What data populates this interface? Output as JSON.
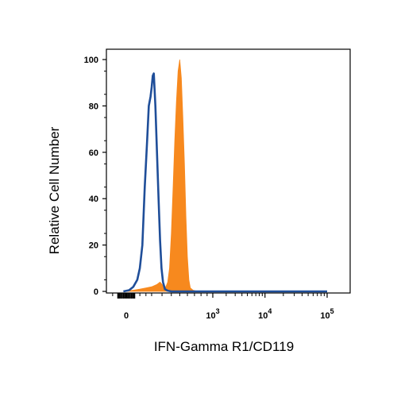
{
  "chart_data": {
    "type": "area",
    "xlabel": "IFN-Gamma R1/CD119",
    "ylabel": "Relative Cell Number",
    "ylim": [
      0,
      100
    ],
    "y_ticks": [
      0,
      20,
      40,
      60,
      80,
      100
    ],
    "x_scale": "biexponential",
    "x_ticks": [
      {
        "value": 0,
        "label": "0"
      },
      {
        "value": 1000,
        "base": "10",
        "exp": "3"
      },
      {
        "value": 10000,
        "base": "10",
        "exp": "4"
      },
      {
        "value": 100000,
        "base": "10",
        "exp": "5"
      }
    ],
    "grid": false,
    "series": [
      {
        "style": "outline",
        "color": "#1f4e99",
        "x": [
          -20,
          20,
          50,
          80,
          100,
          120,
          140,
          160,
          175,
          190,
          200,
          210,
          220,
          235,
          250,
          265,
          280,
          295,
          310,
          330,
          360,
          400,
          500,
          800,
          100000
        ],
        "y": [
          0,
          0.5,
          2,
          5,
          10,
          20,
          45,
          65,
          80,
          84,
          88,
          93,
          94,
          80,
          60,
          40,
          22,
          10,
          4,
          1,
          0.3,
          0,
          0,
          0,
          0
        ]
      },
      {
        "style": "filled",
        "color": "#f7891e",
        "x": [
          -20,
          50,
          100,
          150,
          200,
          250,
          280,
          300,
          320,
          340,
          360,
          380,
          400,
          420,
          440,
          460,
          480,
          500,
          520,
          540,
          560,
          580,
          600,
          620,
          640,
          680,
          720,
          800,
          1000,
          100000
        ],
        "y": [
          0,
          0.5,
          1,
          1.5,
          2,
          3,
          4,
          3,
          2,
          2,
          4,
          10,
          25,
          45,
          65,
          82,
          95,
          100,
          92,
          75,
          55,
          32,
          15,
          5,
          1.5,
          0.5,
          0.2,
          0,
          0,
          0
        ]
      }
    ]
  }
}
